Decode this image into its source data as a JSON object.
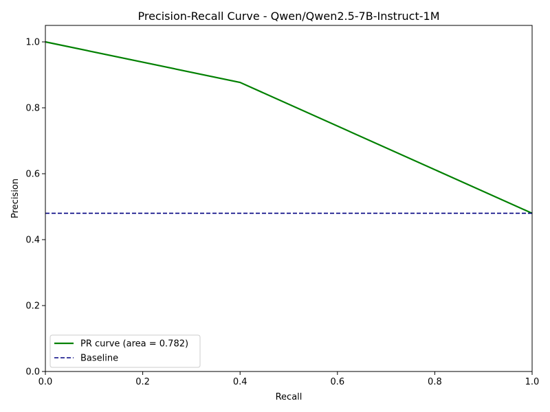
{
  "chart_data": {
    "type": "line",
    "title": "Precision-Recall Curve - Qwen/Qwen2.5-7B-Instruct-1M",
    "xlabel": "Recall",
    "ylabel": "Precision",
    "xlim": [
      0.0,
      1.0
    ],
    "ylim": [
      0.0,
      1.05
    ],
    "xticks": [
      "0.0",
      "0.2",
      "0.4",
      "0.6",
      "0.8",
      "1.0"
    ],
    "yticks": [
      "0.0",
      "0.2",
      "0.4",
      "0.6",
      "0.8",
      "1.0"
    ],
    "grid": false,
    "legend_position": "lower-left",
    "series": [
      {
        "name": "PR curve (area = 0.782)",
        "color": "#008000",
        "style": "solid",
        "x": [
          0.0,
          0.4,
          1.0
        ],
        "y": [
          1.0,
          0.877,
          0.48
        ]
      },
      {
        "name": "Baseline",
        "color": "#000080",
        "style": "dashed",
        "x": [
          0.0,
          1.0
        ],
        "y": [
          0.48,
          0.48
        ]
      }
    ]
  }
}
